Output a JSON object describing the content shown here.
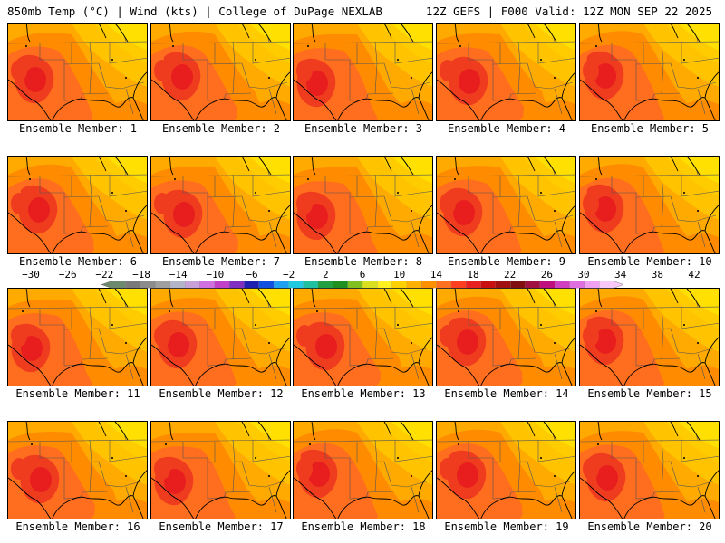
{
  "header": {
    "title_left": "850mb Temp (°C) | Wind (kts) | College of DuPage NEXLAB",
    "title_right": "12Z GEFS | F000 Valid: 12Z MON SEP 22 2025"
  },
  "members": [
    {
      "label": "Ensemble Member: 1",
      "variant": 0
    },
    {
      "label": "Ensemble Member: 2",
      "variant": 1
    },
    {
      "label": "Ensemble Member: 3",
      "variant": 2
    },
    {
      "label": "Ensemble Member: 4",
      "variant": 3
    },
    {
      "label": "Ensemble Member: 5",
      "variant": 4
    },
    {
      "label": "Ensemble Member: 6",
      "variant": 1
    },
    {
      "label": "Ensemble Member: 7",
      "variant": 3
    },
    {
      "label": "Ensemble Member: 8",
      "variant": 2
    },
    {
      "label": "Ensemble Member: 9",
      "variant": 0
    },
    {
      "label": "Ensemble Member: 10",
      "variant": 4
    },
    {
      "label": "Ensemble Member: 11",
      "variant": 2
    },
    {
      "label": "Ensemble Member: 12",
      "variant": 0
    },
    {
      "label": "Ensemble Member: 13",
      "variant": 3
    },
    {
      "label": "Ensemble Member: 14",
      "variant": 1
    },
    {
      "label": "Ensemble Member: 15",
      "variant": 4
    },
    {
      "label": "Ensemble Member: 16",
      "variant": 3
    },
    {
      "label": "Ensemble Member: 17",
      "variant": 2
    },
    {
      "label": "Ensemble Member: 18",
      "variant": 4
    },
    {
      "label": "Ensemble Member: 19",
      "variant": 1
    },
    {
      "label": "Ensemble Member: 20",
      "variant": 0
    }
  ],
  "colorbar": {
    "labels": [
      "-30",
      "-26",
      "-22",
      "-18",
      "-14",
      "-10",
      "-6",
      "-2",
      "2",
      "6",
      "10",
      "14",
      "18",
      "22",
      "26",
      "30",
      "34",
      "38",
      "42"
    ],
    "colors": [
      "#6e8a6e",
      "#7a7a7a",
      "#8c8c8c",
      "#a0a0a0",
      "#b4b4c8",
      "#c8a0d8",
      "#d070e0",
      "#c040c8",
      "#8030c0",
      "#2020b0",
      "#1050e0",
      "#20a0f0",
      "#20c8e0",
      "#20c0a0",
      "#20a040",
      "#209020",
      "#80c020",
      "#d8e020",
      "#fff020",
      "#ffd000",
      "#ffb000",
      "#ff9000",
      "#ff7020",
      "#ff4020",
      "#e82020",
      "#c81010",
      "#a01010",
      "#801010",
      "#a01040",
      "#c01080",
      "#d040c0",
      "#e070e0",
      "#f0a0f0",
      "#f8c8f8"
    ],
    "min": -30,
    "max": 42,
    "step": 2
  },
  "fill_colors": {
    "bright": "#ffe000",
    "yellow": "#ffc800",
    "light": "#ffaa00",
    "mid": "#ff8c00",
    "orange": "#ff6e1e",
    "red": "#f03c1e",
    "deep": "#e81e1e",
    "line": "#000000",
    "border": "#555555"
  }
}
